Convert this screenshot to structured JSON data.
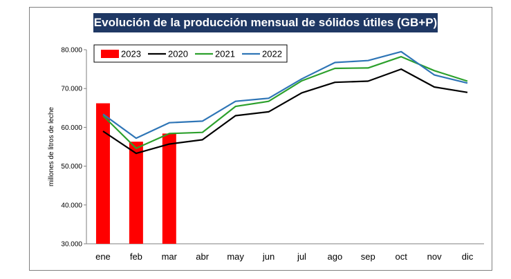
{
  "chart_data": {
    "type": "bar+line",
    "title": "Evolución de la producción mensual de sólidos útiles (GB+P)",
    "ylabel": "millones de litros de leche",
    "xlabel": "",
    "ylim": [
      30000,
      80000
    ],
    "yticks": [
      30000,
      40000,
      50000,
      60000,
      70000,
      80000
    ],
    "ytick_labels": [
      "30.000",
      "40.000",
      "50.000",
      "60.000",
      "70.000",
      "80.000"
    ],
    "categories": [
      "ene",
      "feb",
      "mar",
      "abr",
      "may",
      "jun",
      "jul",
      "ago",
      "sep",
      "oct",
      "nov",
      "dic"
    ],
    "grid": false,
    "legend_placement": "top-left",
    "bar_series": {
      "name": "2023",
      "color": "#ff0000",
      "values": [
        66200,
        56300,
        58400
      ]
    },
    "series": [
      {
        "name": "2020",
        "color": "#000000",
        "values": [
          59000,
          53300,
          55700,
          56800,
          63000,
          64000,
          68900,
          71600,
          71900,
          75000,
          70400,
          69000
        ]
      },
      {
        "name": "2021",
        "color": "#2ca02c",
        "values": [
          63000,
          54600,
          58400,
          58700,
          65400,
          66700,
          72000,
          75200,
          75300,
          78200,
          74600,
          71900
        ]
      },
      {
        "name": "2022",
        "color": "#2e75b6",
        "values": [
          63400,
          57200,
          61200,
          61600,
          66700,
          67500,
          72500,
          76700,
          77200,
          79500,
          73500,
          71400
        ]
      }
    ]
  }
}
